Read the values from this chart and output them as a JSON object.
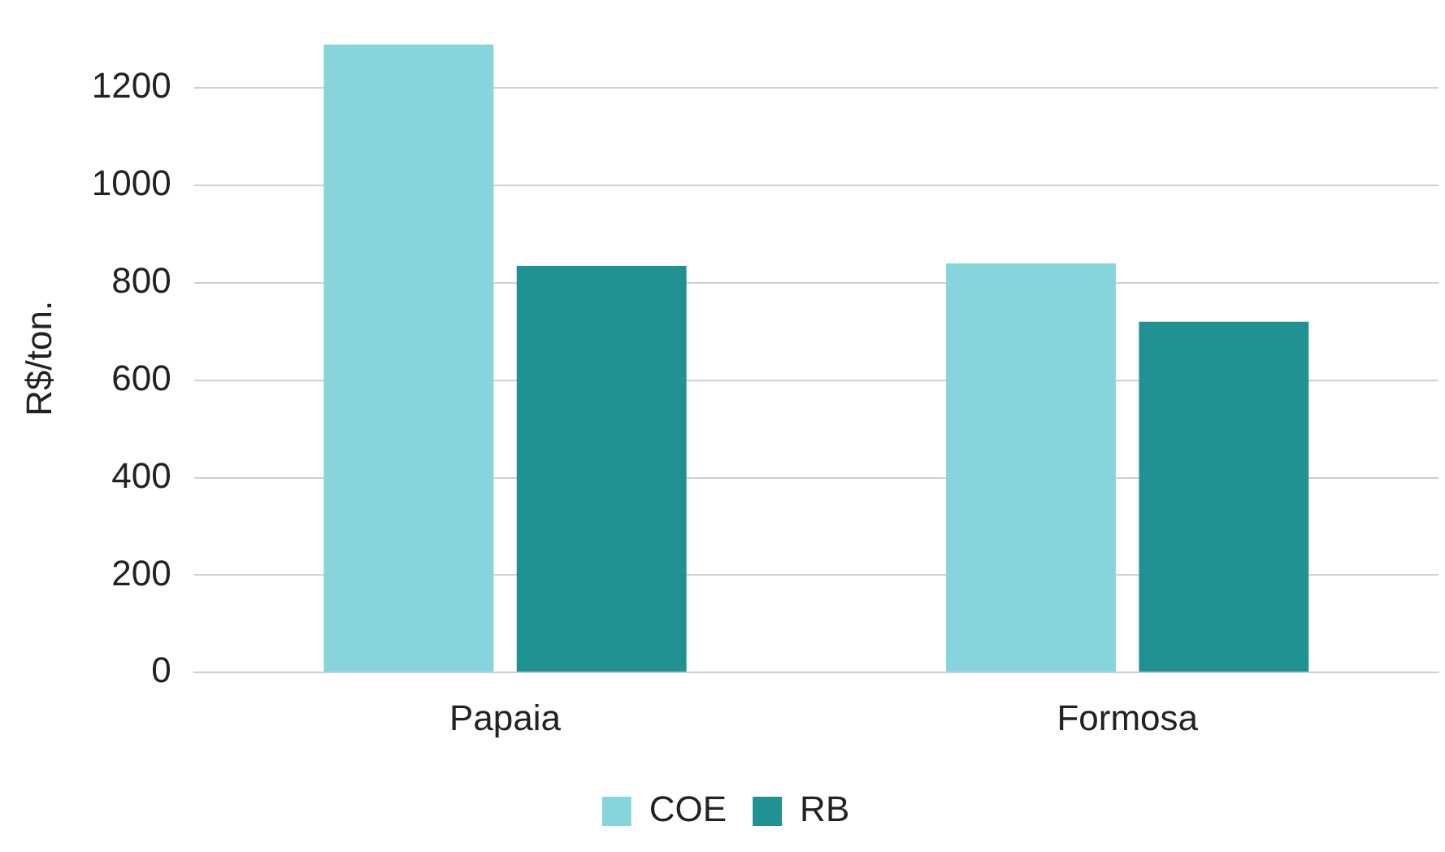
{
  "chart_data": {
    "type": "bar",
    "ylabel": "R$/ton.",
    "categories": [
      "Papaia",
      "Formosa"
    ],
    "series": [
      {
        "name": "COE",
        "color": "#86d4dc",
        "values": [
          1290,
          840
        ]
      },
      {
        "name": "RB",
        "color": "#219294",
        "values": [
          835,
          720
        ]
      }
    ],
    "ylim": [
      0,
      1290
    ],
    "yticks": [
      0,
      200,
      400,
      600,
      800,
      1000,
      1200
    ],
    "grid": "y",
    "legend": "bottom"
  }
}
